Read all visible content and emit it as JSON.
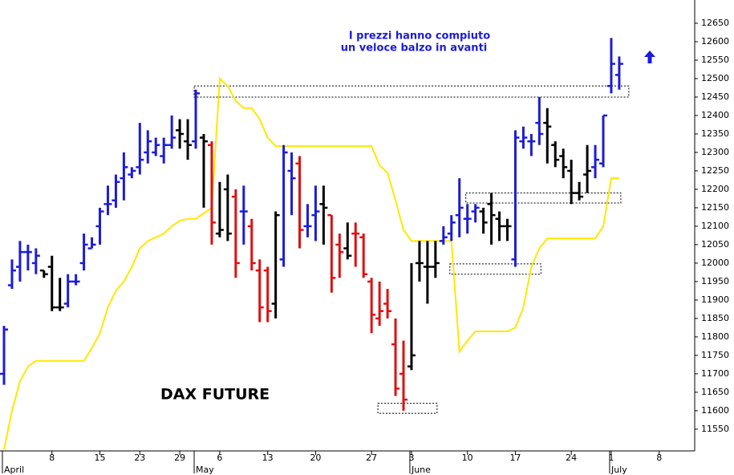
{
  "chart_data": {
    "type": "ohlc",
    "title": "DAX FUTURE",
    "annotation": [
      "I prezzi hanno compiuto",
      "un veloce balzo in avanti"
    ],
    "categories": [
      null,
      null,
      null,
      null,
      null,
      null,
      "8",
      null,
      null,
      null,
      null,
      null,
      "15",
      null,
      null,
      null,
      null,
      "23",
      null,
      null,
      null,
      null,
      "29",
      null,
      null,
      null,
      null,
      "6",
      null,
      null,
      null,
      null,
      null,
      "13",
      null,
      null,
      null,
      null,
      null,
      "20",
      null,
      null,
      null,
      null,
      null,
      null,
      "27",
      null,
      null,
      null,
      null,
      "3",
      null,
      null,
      null,
      null,
      null,
      null,
      "10",
      null,
      null,
      null,
      null,
      null,
      "17",
      null,
      null,
      null,
      null,
      null,
      null,
      "24",
      null,
      null,
      null,
      null,
      "1",
      null,
      null,
      null,
      null,
      null,
      "8",
      null,
      null,
      null,
      null
    ],
    "months": [
      "April",
      null,
      null,
      null,
      null,
      null,
      null,
      null,
      null,
      null,
      null,
      null,
      null,
      null,
      null,
      null,
      null,
      null,
      null,
      null,
      null,
      null,
      null,
      null,
      "May",
      null,
      null,
      null,
      null,
      null,
      null,
      null,
      null,
      null,
      null,
      null,
      null,
      null,
      null,
      null,
      null,
      null,
      null,
      null,
      null,
      null,
      null,
      null,
      null,
      null,
      null,
      "June",
      null,
      null,
      null,
      null,
      null,
      null,
      null,
      null,
      null,
      null,
      null,
      null,
      null,
      null,
      null,
      null,
      null,
      null,
      null,
      null,
      null,
      null,
      null,
      null,
      "July",
      null,
      null,
      null,
      null,
      null,
      null,
      null,
      null,
      null,
      null
    ],
    "open": [
      11700,
      11940,
      11990,
      12030,
      12000,
      11980,
      11990,
      11880,
      11890,
      11950,
      12000,
      12040,
      12100,
      12160,
      12170,
      12230,
      12240,
      12260,
      12300,
      12300,
      12290,
      12320,
      12360,
      12330,
      12330,
      12340,
      12320,
      12080,
      12200,
      12180,
      12140,
      12100,
      11980,
      11980,
      11890,
      12010,
      12250,
      12270,
      12100,
      12130,
      12160,
      12130,
      12050,
      12040,
      12080,
      12070,
      11950,
      11850,
      11890,
      11780,
      11700,
      11720,
      12000,
      11990,
      11990,
      12060,
      12080,
      12130,
      12120,
      12140,
      12140,
      12160,
      12120,
      12100,
      12010,
      12330,
      12330,
      12380,
      12380,
      12320,
      12290,
      12250,
      12190,
      12240,
      12260,
      12270,
      12480,
      12510,
      null,
      null,
      null,
      null,
      null,
      null,
      null,
      null,
      null
    ],
    "high": [
      11830,
      12010,
      12060,
      12050,
      12040,
      11980,
      12020,
      11960,
      11970,
      11970,
      12080,
      12070,
      12150,
      12210,
      12240,
      12300,
      12260,
      12380,
      12360,
      12340,
      12340,
      12400,
      12390,
      12390,
      12470,
      12350,
      12330,
      12220,
      12240,
      12200,
      12210,
      12120,
      12010,
      11990,
      12140,
      12320,
      12300,
      12290,
      12160,
      12210,
      12210,
      12130,
      12080,
      12110,
      12110,
      12080,
      11960,
      11950,
      11930,
      11850,
      11790,
      12000,
      12060,
      12060,
      12060,
      12100,
      12130,
      12230,
      12160,
      12160,
      12150,
      12190,
      12140,
      12120,
      12360,
      12370,
      12350,
      12450,
      12420,
      12330,
      12310,
      12280,
      12220,
      12320,
      12320,
      12400,
      12610,
      12560,
      null,
      null,
      null,
      null,
      null,
      null,
      null,
      null,
      null
    ],
    "low": [
      11670,
      11930,
      11950,
      11980,
      11970,
      11960,
      11870,
      11870,
      11880,
      11940,
      11980,
      12040,
      12050,
      12130,
      12150,
      12170,
      12230,
      12240,
      12270,
      12290,
      12270,
      12310,
      12310,
      12280,
      12310,
      12150,
      12050,
      12070,
      12060,
      11960,
      12050,
      11980,
      11840,
      11840,
      11850,
      11990,
      12130,
      12040,
      12070,
      12060,
      12050,
      11920,
      11960,
      12010,
      11990,
      11960,
      11810,
      11830,
      11850,
      11640,
      11600,
      11710,
      11950,
      11890,
      11960,
      12050,
      12060,
      12070,
      12080,
      12110,
      12080,
      12050,
      12060,
      12060,
      11990,
      12310,
      12290,
      12320,
      12270,
      12260,
      12230,
      12160,
      12170,
      12190,
      12230,
      12260,
      12460,
      12470,
      null,
      null,
      null,
      null,
      null,
      null,
      null,
      null,
      null
    ],
    "close": [
      11820,
      11980,
      12030,
      12030,
      12020,
      11970,
      11880,
      11880,
      11950,
      11950,
      12050,
      12050,
      12140,
      12160,
      12220,
      12260,
      12250,
      12280,
      12330,
      12320,
      12320,
      12340,
      12350,
      12320,
      12460,
      12330,
      12110,
      12090,
      12080,
      12000,
      12140,
      12000,
      11880,
      11870,
      12130,
      12300,
      12230,
      12090,
      12100,
      12140,
      12150,
      11960,
      12030,
      12020,
      12080,
      11970,
      11860,
      11870,
      11870,
      11660,
      11630,
      11750,
      12000,
      11990,
      12000,
      12070,
      12110,
      12150,
      12120,
      12150,
      12110,
      12130,
      12100,
      12100,
      12340,
      12340,
      12330,
      12350,
      12370,
      12280,
      12260,
      12190,
      12180,
      12250,
      12280,
      12400,
      12540,
      12540,
      null,
      null,
      null,
      null,
      null,
      null,
      null,
      null,
      null
    ],
    "colors": [
      "#1c1cd8",
      "#1c1cd8",
      "#1c1cd8",
      "#1c1cd8",
      "#1c1cd8",
      "#000000",
      "#000000",
      "#000000",
      "#1c1cd8",
      "#1c1cd8",
      "#1c1cd8",
      "#1c1cd8",
      "#1c1cd8",
      "#1c1cd8",
      "#1c1cd8",
      "#1c1cd8",
      "#1c1cd8",
      "#1c1cd8",
      "#1c1cd8",
      "#1c1cd8",
      "#1c1cd8",
      "#1c1cd8",
      "#000000",
      "#000000",
      "#1c1cd8",
      "#000000",
      "#e01010",
      "#000000",
      "#000000",
      "#e01010",
      "#1c1cd8",
      "#e01010",
      "#e01010",
      "#e01010",
      "#000000",
      "#1c1cd8",
      "#1c1cd8",
      "#e01010",
      "#1c1cd8",
      "#1c1cd8",
      "#000000",
      "#e01010",
      "#e01010",
      "#000000",
      "#e01010",
      "#e01010",
      "#e01010",
      "#e01010",
      "#e01010",
      "#e01010",
      "#e01010",
      "#000000",
      "#000000",
      "#000000",
      "#000000",
      "#1c1cd8",
      "#1c1cd8",
      "#1c1cd8",
      "#1c1cd8",
      "#1c1cd8",
      "#000000",
      "#000000",
      "#000000",
      "#000000",
      "#1c1cd8",
      "#1c1cd8",
      "#1c1cd8",
      "#1c1cd8",
      "#000000",
      "#000000",
      "#000000",
      "#000000",
      "#000000",
      "#000000",
      "#1c1cd8",
      "#1c1cd8",
      "#1c1cd8",
      "#1c1cd8",
      null,
      null,
      null,
      null,
      null,
      null,
      null,
      null,
      null
    ],
    "overlay": {
      "color": "#ffe800",
      "values": [
        11495,
        11600,
        11680,
        11720,
        11735,
        11735,
        11735,
        11735,
        11735,
        11735,
        11735,
        11770,
        11810,
        11880,
        11925,
        11950,
        11990,
        12040,
        12060,
        12070,
        12080,
        12100,
        12115,
        12120,
        12120,
        12135,
        12150,
        12500,
        12480,
        12440,
        12420,
        12420,
        12390,
        12340,
        12317,
        12317,
        12317,
        12317,
        12317,
        12317,
        12317,
        12317,
        12317,
        12317,
        12317,
        12317,
        12317,
        12265,
        12245,
        12170,
        12090,
        12060,
        12060,
        12060,
        12060,
        12060,
        12060,
        11760,
        11790,
        11815,
        11815,
        11815,
        11815,
        11815,
        11825,
        11880,
        11990,
        12040,
        12067,
        12067,
        12067,
        12067,
        12067,
        12067,
        12067,
        12100,
        12230,
        12230,
        null,
        null,
        null,
        null,
        null,
        null,
        null,
        null,
        null
      ]
    },
    "zones": [
      {
        "from": 24,
        "to": 78,
        "low": 12450,
        "high": 12480
      },
      {
        "from": 58,
        "to": 77,
        "low": 12163,
        "high": 12190
      },
      {
        "from": 56,
        "to": 67,
        "low": 11970,
        "high": 11998
      },
      {
        "from": 47,
        "to": 54,
        "low": 11593,
        "high": 11620
      }
    ],
    "ylim": [
      11491,
      12713
    ],
    "yticks": [
      11550,
      11600,
      11650,
      11700,
      11750,
      11800,
      11850,
      11900,
      11950,
      12000,
      12050,
      12100,
      12150,
      12200,
      12250,
      12300,
      12350,
      12400,
      12450,
      12500,
      12550,
      12600,
      12650
    ]
  }
}
